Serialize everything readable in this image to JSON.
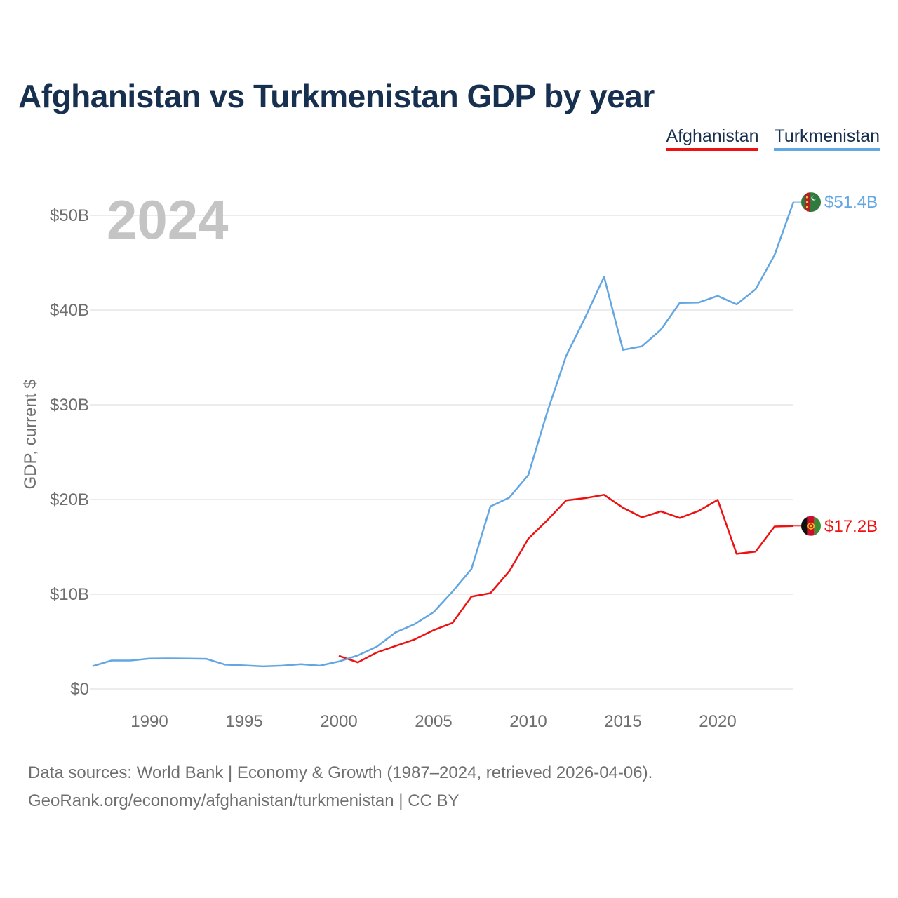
{
  "chart_data": {
    "type": "line",
    "title": "Afghanistan vs Turkmenistan GDP by year",
    "ylabel": "GDP, current $",
    "xlabel": "",
    "year_label": "2024",
    "x_range": [
      1987,
      2024
    ],
    "ylim": [
      0,
      52
    ],
    "y_ticks": [
      {
        "value": 0,
        "label": "$0"
      },
      {
        "value": 10,
        "label": "$10B"
      },
      {
        "value": 20,
        "label": "$20B"
      },
      {
        "value": 30,
        "label": "$30B"
      },
      {
        "value": 40,
        "label": "$40B"
      },
      {
        "value": 50,
        "label": "$50B"
      }
    ],
    "x_ticks": [
      {
        "value": 1990,
        "label": "1990"
      },
      {
        "value": 1995,
        "label": "1995"
      },
      {
        "value": 2000,
        "label": "2000"
      },
      {
        "value": 2005,
        "label": "2005"
      },
      {
        "value": 2010,
        "label": "2010"
      },
      {
        "value": 2015,
        "label": "2015"
      },
      {
        "value": 2020,
        "label": "2020"
      }
    ],
    "series": [
      {
        "name": "Afghanistan",
        "color": "#ee1111",
        "end_label": "$17.2B",
        "x": [
          2000,
          2001,
          2002,
          2003,
          2004,
          2005,
          2006,
          2007,
          2008,
          2009,
          2010,
          2011,
          2012,
          2013,
          2014,
          2015,
          2016,
          2017,
          2018,
          2019,
          2020,
          2021,
          2022,
          2023,
          2024
        ],
        "values": [
          3.5,
          2.8,
          3.85,
          4.54,
          5.23,
          6.21,
          6.97,
          9.75,
          10.11,
          12.44,
          15.86,
          17.8,
          19.91,
          20.15,
          20.5,
          19.13,
          18.12,
          18.75,
          18.05,
          18.8,
          19.96,
          14.27,
          14.5,
          17.15,
          17.2
        ]
      },
      {
        "name": "Turkmenistan",
        "color": "#62a6e2",
        "end_label": "$51.4B",
        "x": [
          1987,
          1988,
          1989,
          1990,
          1991,
          1992,
          1993,
          1994,
          1995,
          1996,
          1997,
          1998,
          1999,
          2000,
          2001,
          2002,
          2003,
          2004,
          2005,
          2006,
          2007,
          2008,
          2009,
          2010,
          2011,
          2012,
          2013,
          2014,
          2015,
          2016,
          2017,
          2018,
          2019,
          2020,
          2021,
          2022,
          2023,
          2024
        ],
        "values": [
          2.4,
          3.0,
          3.0,
          3.2,
          3.22,
          3.2,
          3.18,
          2.56,
          2.48,
          2.38,
          2.45,
          2.61,
          2.45,
          2.9,
          3.53,
          4.46,
          5.98,
          6.84,
          8.1,
          10.28,
          12.66,
          19.27,
          20.21,
          22.58,
          29.23,
          35.16,
          39.2,
          43.52,
          35.8,
          36.18,
          37.93,
          40.76,
          40.8,
          41.5,
          40.6,
          42.2,
          45.8,
          51.4
        ]
      }
    ]
  },
  "legend": {
    "afghanistan": "Afghanistan",
    "turkmenistan": "Turkmenistan"
  },
  "footer": {
    "line1": "Data sources: World Bank | Economy & Growth (1987–2024, retrieved 2026-04-06).",
    "line2": "GeoRank.org/economy/afghanistan/turkmenistan | CC BY"
  },
  "colors": {
    "title": "#17304f",
    "afghanistan": "#ee1111",
    "turkmenistan": "#62a6e2",
    "axis_text": "#6f6f6f",
    "grid": "#e6e6e6",
    "year_watermark": "#c4c4c4"
  },
  "icons": [
    "flag-turkmenistan-icon",
    "flag-afghanistan-icon"
  ]
}
